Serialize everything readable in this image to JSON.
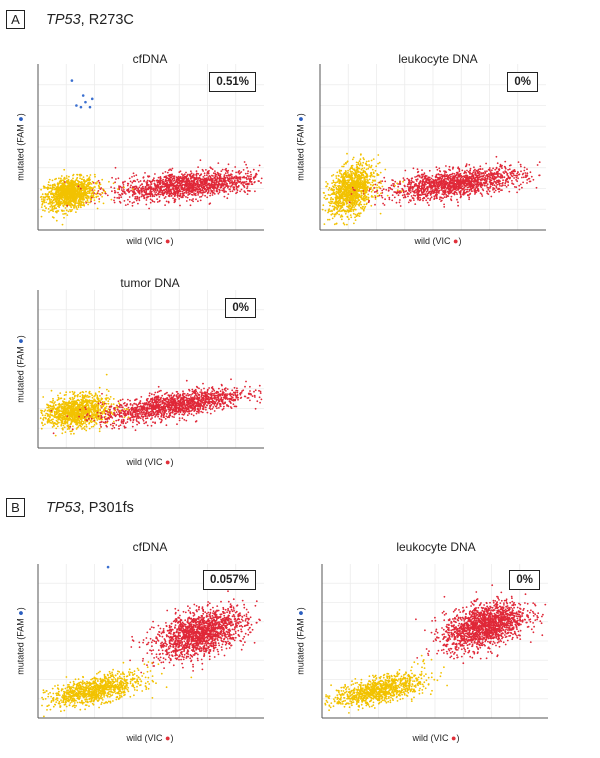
{
  "panels": [
    {
      "letter": "A",
      "gene": "TP53",
      "mutation": ", R273C"
    },
    {
      "letter": "B",
      "gene": "TP53",
      "mutation": ", P301fs"
    }
  ],
  "axis": {
    "x_text": "wild (VIC",
    "y_text": "mutated (FAM",
    "x_marker": "●",
    "y_marker": "●",
    "x_marker_color": "#e0303a",
    "y_marker_color": "#2a5dbf",
    "close": ")"
  },
  "chart_data": [
    {
      "type": "scatter",
      "panel": "A",
      "title": "cfDNA",
      "mutant_fraction": "0.51%",
      "series": [
        {
          "name": "negative (yellow)",
          "color": "#f2c200",
          "cluster_center": [
            0.14,
            0.22
          ],
          "approx_count": 1200
        },
        {
          "name": "wild-type (red)",
          "color": "#e02838",
          "cluster_center": [
            0.66,
            0.27
          ],
          "approx_count": 1500
        },
        {
          "name": "mutated (blue)",
          "color": "#3a6fd0",
          "points": [
            [
              0.17,
              0.75
            ],
            [
              0.19,
              0.74
            ],
            [
              0.21,
              0.77
            ],
            [
              0.23,
              0.74
            ],
            [
              0.24,
              0.79
            ],
            [
              0.2,
              0.81
            ],
            [
              0.15,
              0.9
            ]
          ]
        }
      ],
      "xlabel": "wild (VIC)",
      "ylabel": "mutated (FAM)"
    },
    {
      "type": "scatter",
      "panel": "A",
      "title": "leukocyte DNA",
      "mutant_fraction": "0%",
      "series": [
        {
          "name": "negative (yellow)",
          "color": "#f2c200",
          "cluster_center": [
            0.14,
            0.24
          ],
          "approx_count": 1200
        },
        {
          "name": "wild-type (red)",
          "color": "#e02838",
          "cluster_center": [
            0.6,
            0.28
          ],
          "approx_count": 1500
        }
      ],
      "xlabel": "wild (VIC)",
      "ylabel": "mutated (FAM)"
    },
    {
      "type": "scatter",
      "panel": "A",
      "title": "tumor DNA",
      "mutant_fraction": "0%",
      "series": [
        {
          "name": "negative (yellow)",
          "color": "#f2c200",
          "cluster_center": [
            0.17,
            0.23
          ],
          "approx_count": 1200
        },
        {
          "name": "wild-type (red)",
          "color": "#e02838",
          "cluster_center": [
            0.6,
            0.27
          ],
          "approx_count": 1500
        }
      ],
      "xlabel": "wild (VIC)",
      "ylabel": "mutated (FAM)"
    },
    {
      "type": "scatter",
      "panel": "B",
      "title": "cfDNA",
      "mutant_fraction": "0.057%",
      "series": [
        {
          "name": "negative (yellow)",
          "color": "#f2c200",
          "cluster_center": [
            0.25,
            0.18
          ],
          "approx_count": 1000
        },
        {
          "name": "wild-type (red)",
          "color": "#e02838",
          "cluster_center": [
            0.72,
            0.55
          ],
          "approx_count": 1600
        },
        {
          "name": "mutated (blue)",
          "color": "#3a6fd0",
          "points": [
            [
              0.31,
              0.98
            ]
          ]
        }
      ],
      "xlabel": "wild (VIC)",
      "ylabel": "mutated (FAM)"
    },
    {
      "type": "scatter",
      "panel": "B",
      "title": "leukocyte DNA",
      "mutant_fraction": "0%",
      "series": [
        {
          "name": "negative (yellow)",
          "color": "#f2c200",
          "cluster_center": [
            0.25,
            0.18
          ],
          "approx_count": 1000
        },
        {
          "name": "wild-type (red)",
          "color": "#e02838",
          "cluster_center": [
            0.72,
            0.6
          ],
          "approx_count": 1600
        }
      ],
      "xlabel": "wild (VIC)",
      "ylabel": "mutated (FAM)"
    }
  ]
}
